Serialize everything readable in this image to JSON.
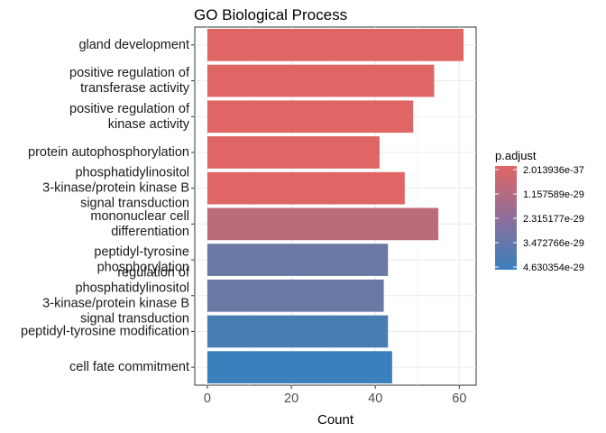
{
  "chart_data": {
    "type": "bar",
    "orientation": "horizontal",
    "title": "GO Biological Process",
    "xlabel": "Count",
    "ylabel": "",
    "xlim": [
      -3,
      64
    ],
    "xticks": [
      0,
      20,
      40,
      60
    ],
    "grid": true,
    "legend_position": "right",
    "categories": [
      [
        "gland development"
      ],
      [
        "positive regulation of",
        "transferase activity"
      ],
      [
        "positive regulation of",
        "kinase activity"
      ],
      [
        "protein autophosphorylation"
      ],
      [
        "phosphatidylinositol",
        "3-kinase/protein kinase B",
        "signal transduction"
      ],
      [
        "mononuclear cell",
        "differentiation"
      ],
      [
        "peptidyl-tyrosine",
        "phosphorylation"
      ],
      [
        "regulation of",
        "phosphatidylinositol",
        "3-kinase/protein kinase B",
        "signal transduction"
      ],
      [
        "peptidyl-tyrosine modification"
      ],
      [
        "cell fate commitment"
      ]
    ],
    "values": [
      61,
      54,
      49,
      41,
      47,
      55,
      43,
      42,
      43,
      44
    ],
    "p_adjust": [
      2e-37,
      1e-37,
      1.5e-37,
      3e-37,
      4e-37,
      1e-29,
      3.3e-29,
      3.3e-29,
      4.2e-29,
      4.63e-29
    ],
    "colorbar": {
      "title": "p.adjust",
      "labels": [
        "2.013936e-37",
        "1.157589e-29",
        "2.315177e-29",
        "3.472766e-29",
        "4.630354e-29"
      ],
      "stops": [
        2.013936e-37,
        1.157589e-29,
        2.315177e-29,
        3.472766e-29,
        4.630354e-29
      ],
      "low_color": "#e06666",
      "high_color": "#3a80bd"
    }
  }
}
